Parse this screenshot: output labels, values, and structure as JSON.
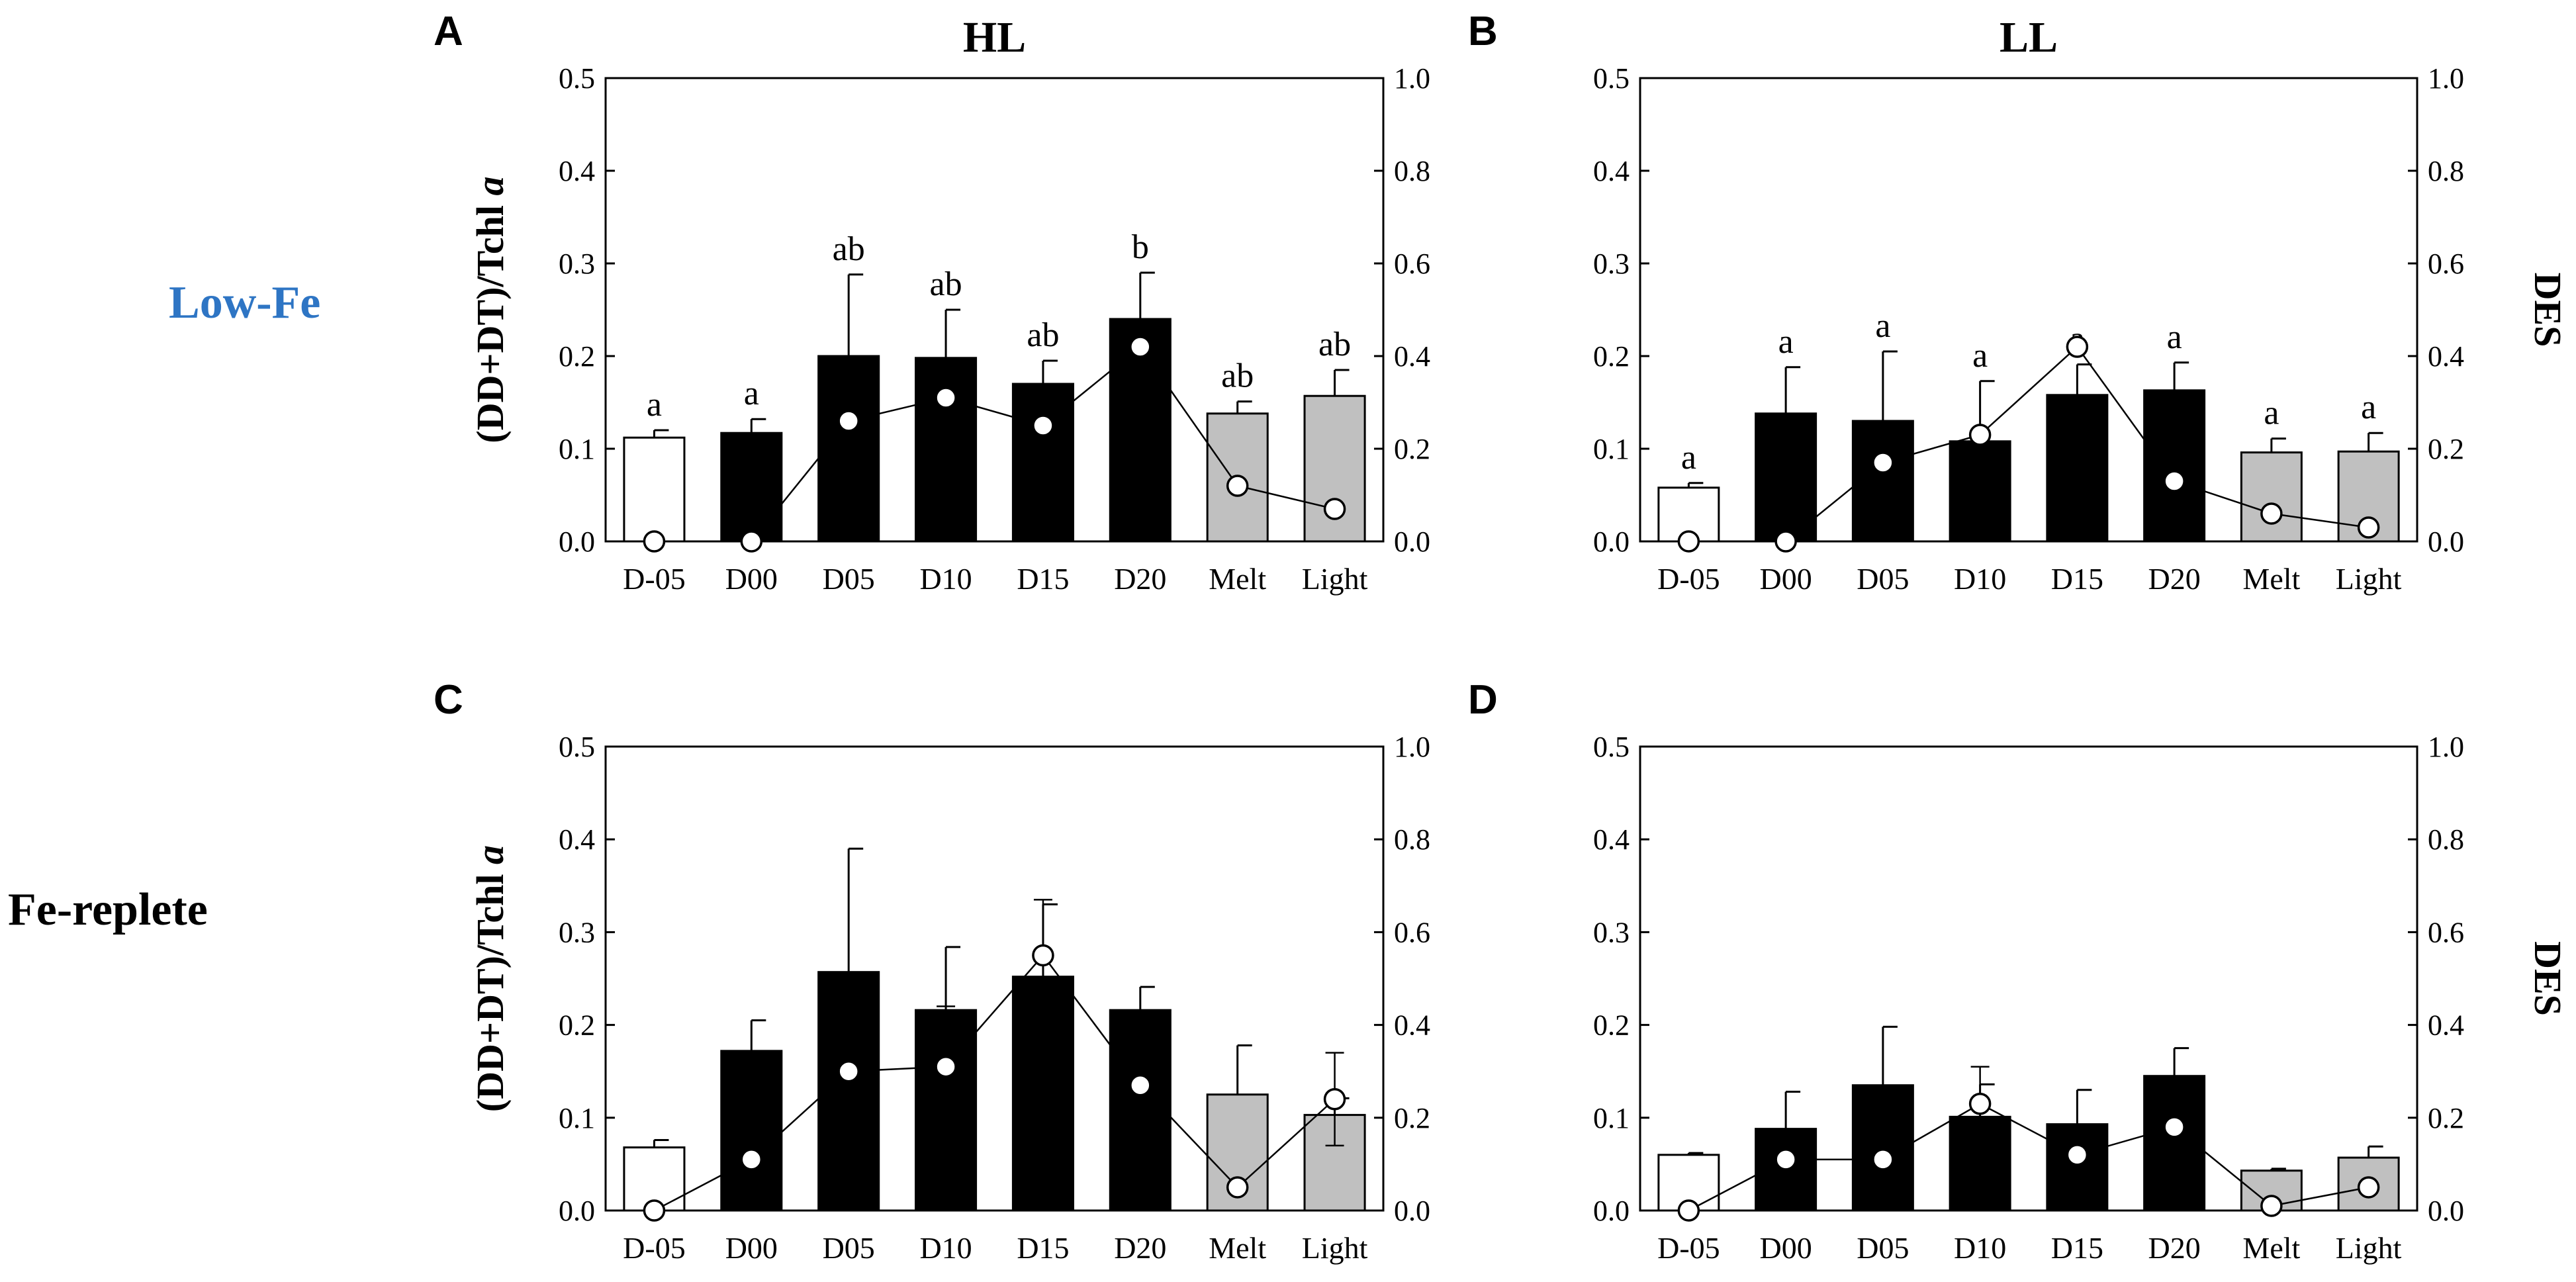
{
  "figure": {
    "row_labels": [
      {
        "text": "Low-Fe",
        "color": "#2e75c4"
      },
      {
        "text": "Fe-replete",
        "color": "#000000"
      }
    ]
  },
  "chart_data": [
    {
      "panel": "A",
      "title": "HL",
      "type": "bar",
      "ylabel_left": "(DD+DT)/Tchl a",
      "ylabel_right": "",
      "ylim": [
        0,
        0.5
      ],
      "yticks": [
        "0.0",
        "0.1",
        "0.2",
        "0.3",
        "0.4",
        "0.5"
      ],
      "ylim_right": [
        0,
        1.0
      ],
      "yticks_right": [
        "0.0",
        "0.2",
        "0.4",
        "0.6",
        "0.8",
        "1.0"
      ],
      "categories": [
        "D-05",
        "D00",
        "D05",
        "D10",
        "D15",
        "D20",
        "Melt",
        "Light"
      ],
      "bar_fill": [
        "#ffffff",
        "#000000",
        "#000000",
        "#000000",
        "#000000",
        "#000000",
        "#c0c0c0",
        "#c0c0c0"
      ],
      "values": [
        0.112,
        0.117,
        0.2,
        0.198,
        0.17,
        0.24,
        0.138,
        0.157
      ],
      "errors": [
        0.008,
        0.015,
        0.088,
        0.052,
        0.025,
        0.05,
        0.013,
        0.028
      ],
      "letters": [
        "a",
        "a",
        "ab",
        "ab",
        "ab",
        "b",
        "ab",
        "ab"
      ],
      "des_series": {
        "name": "DES",
        "values": [
          0.0,
          0.0,
          0.26,
          0.31,
          0.25,
          0.42,
          0.12,
          0.07
        ],
        "errors": [
          0,
          0,
          0,
          0.03,
          0,
          0,
          0,
          0
        ]
      }
    },
    {
      "panel": "B",
      "title": "LL",
      "type": "bar",
      "ylabel_left": "",
      "ylabel_right": "DES",
      "ylim": [
        0,
        0.5
      ],
      "yticks": [
        "0.0",
        "0.1",
        "0.2",
        "0.3",
        "0.4",
        "0.5"
      ],
      "ylim_right": [
        0,
        1.0
      ],
      "yticks_right": [
        "0.0",
        "0.2",
        "0.4",
        "0.6",
        "0.8",
        "1.0"
      ],
      "categories": [
        "D-05",
        "D00",
        "D05",
        "D10",
        "D15",
        "D20",
        "Melt",
        "Light"
      ],
      "bar_fill": [
        "#ffffff",
        "#000000",
        "#000000",
        "#000000",
        "#000000",
        "#000000",
        "#c0c0c0",
        "#c0c0c0"
      ],
      "values": [
        0.058,
        0.138,
        0.13,
        0.108,
        0.158,
        0.163,
        0.096,
        0.097
      ],
      "errors": [
        0.005,
        0.05,
        0.075,
        0.065,
        0.033,
        0.03,
        0.015,
        0.02
      ],
      "letters": [
        "a",
        "a",
        "a",
        "a",
        "a",
        "a",
        "a",
        "a"
      ],
      "des_series": {
        "name": "DES",
        "values": [
          0.0,
          0.0,
          0.17,
          0.23,
          0.42,
          0.13,
          0.06,
          0.03
        ],
        "errors": [
          0,
          0,
          0,
          0,
          0,
          0.02,
          0,
          0
        ]
      }
    },
    {
      "panel": "C",
      "title": "",
      "type": "bar",
      "ylabel_left": "(DD+DT)/Tchl a",
      "ylabel_right": "",
      "ylim": [
        0,
        0.5
      ],
      "yticks": [
        "0.0",
        "0.1",
        "0.2",
        "0.3",
        "0.4",
        "0.5"
      ],
      "ylim_right": [
        0,
        1.0
      ],
      "yticks_right": [
        "0.0",
        "0.2",
        "0.4",
        "0.6",
        "0.8",
        "1.0"
      ],
      "categories": [
        "D-05",
        "D00",
        "D05",
        "D10",
        "D15",
        "D20",
        "Melt",
        "Light"
      ],
      "bar_fill": [
        "#ffffff",
        "#000000",
        "#000000",
        "#000000",
        "#000000",
        "#000000",
        "#c0c0c0",
        "#c0c0c0"
      ],
      "values": [
        0.068,
        0.172,
        0.257,
        0.216,
        0.252,
        0.216,
        0.125,
        0.103
      ],
      "errors": [
        0.008,
        0.033,
        0.133,
        0.068,
        0.078,
        0.025,
        0.053,
        0.018
      ],
      "letters": [
        "",
        "",
        "",
        "",
        "",
        "",
        "",
        ""
      ],
      "des_series": {
        "name": "DES",
        "values": [
          0.0,
          0.11,
          0.3,
          0.31,
          0.55,
          0.27,
          0.05,
          0.24
        ],
        "errors": [
          0,
          0.03,
          0.17,
          0.13,
          0.12,
          0,
          0,
          0.1
        ]
      }
    },
    {
      "panel": "D",
      "title": "",
      "type": "bar",
      "ylabel_left": "",
      "ylabel_right": "DES",
      "ylim": [
        0,
        0.5
      ],
      "yticks": [
        "0.0",
        "0.1",
        "0.2",
        "0.3",
        "0.4",
        "0.5"
      ],
      "ylim_right": [
        0,
        1.0
      ],
      "yticks_right": [
        "0.0",
        "0.2",
        "0.4",
        "0.6",
        "0.8",
        "1.0"
      ],
      "categories": [
        "D-05",
        "D00",
        "D05",
        "D10",
        "D15",
        "D20",
        "Melt",
        "Light"
      ],
      "bar_fill": [
        "#ffffff",
        "#000000",
        "#000000",
        "#000000",
        "#000000",
        "#000000",
        "#c0c0c0",
        "#c0c0c0"
      ],
      "values": [
        0.06,
        0.088,
        0.135,
        0.101,
        0.093,
        0.145,
        0.043,
        0.057
      ],
      "errors": [
        0.002,
        0.04,
        0.063,
        0.035,
        0.037,
        0.03,
        0.002,
        0.012
      ],
      "letters": [
        "",
        "",
        "",
        "",
        "",
        "",
        "",
        ""
      ],
      "des_series": {
        "name": "DES",
        "values": [
          0.0,
          0.11,
          0.11,
          0.23,
          0.12,
          0.18,
          0.01,
          0.05
        ],
        "errors": [
          0,
          0,
          0.03,
          0.08,
          0.06,
          0,
          0,
          0
        ]
      }
    }
  ]
}
